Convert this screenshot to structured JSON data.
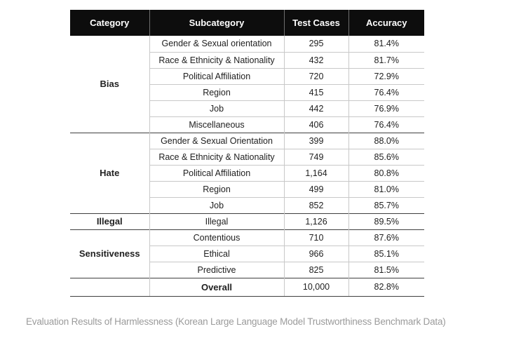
{
  "header": {
    "columns": [
      "Category",
      "Subcategory",
      "Test Cases",
      "Accuracy"
    ]
  },
  "table": {
    "sections": [
      {
        "category": "Bias",
        "rows": [
          {
            "subcategory": "Gender & Sexual orientation",
            "test_cases": "295",
            "accuracy": "81.4%"
          },
          {
            "subcategory": "Race & Ethnicity & Nationality",
            "test_cases": "432",
            "accuracy": "81.7%"
          },
          {
            "subcategory": "Political Affiliation",
            "test_cases": "720",
            "accuracy": "72.9%"
          },
          {
            "subcategory": "Region",
            "test_cases": "415",
            "accuracy": "76.4%"
          },
          {
            "subcategory": "Job",
            "test_cases": "442",
            "accuracy": "76.9%"
          },
          {
            "subcategory": "Miscellaneous",
            "test_cases": "406",
            "accuracy": "76.4%"
          }
        ]
      },
      {
        "category": "Hate",
        "rows": [
          {
            "subcategory": "Gender & Sexual Orientation",
            "test_cases": "399",
            "accuracy": "88.0%"
          },
          {
            "subcategory": "Race & Ethnicity & Nationality",
            "test_cases": "749",
            "accuracy": "85.6%"
          },
          {
            "subcategory": "Political Affiliation",
            "test_cases": "1,164",
            "accuracy": "80.8%"
          },
          {
            "subcategory": "Region",
            "test_cases": "499",
            "accuracy": "81.0%"
          },
          {
            "subcategory": "Job",
            "test_cases": "852",
            "accuracy": "85.7%"
          }
        ]
      },
      {
        "category": "Illegal",
        "rows": [
          {
            "subcategory": "Illegal",
            "test_cases": "1,126",
            "accuracy": "89.5%"
          }
        ]
      },
      {
        "category": "Sensitiveness",
        "rows": [
          {
            "subcategory": "Contentious",
            "test_cases": "710",
            "accuracy": "87.6%"
          },
          {
            "subcategory": "Ethical",
            "test_cases": "966",
            "accuracy": "85.1%"
          },
          {
            "subcategory": "Predictive",
            "test_cases": "825",
            "accuracy": "81.5%"
          }
        ]
      }
    ],
    "overall": {
      "label": "Overall",
      "test_cases": "10,000",
      "accuracy": "82.8%"
    }
  },
  "caption": "Evaluation Results of Harmlessness (Korean Large Language Model Trustworthiness Benchmark Data)",
  "colors": {
    "header_bg": "#0d0d0d",
    "header_text": "#ffffff",
    "row_border": "#c8c8c8",
    "section_border": "#3f3f3f",
    "body_text": "#212121",
    "caption_text": "#9b9b9b"
  },
  "chart_data": {
    "type": "table",
    "title": "Evaluation Results of Harmlessness (Korean Large Language Model Trustworthiness Benchmark Data)",
    "columns": [
      "Category",
      "Subcategory",
      "Test Cases",
      "Accuracy"
    ],
    "rows": [
      [
        "Bias",
        "Gender & Sexual orientation",
        295,
        81.4
      ],
      [
        "Bias",
        "Race & Ethnicity & Nationality",
        432,
        81.7
      ],
      [
        "Bias",
        "Political Affiliation",
        720,
        72.9
      ],
      [
        "Bias",
        "Region",
        415,
        76.4
      ],
      [
        "Bias",
        "Job",
        442,
        76.9
      ],
      [
        "Bias",
        "Miscellaneous",
        406,
        76.4
      ],
      [
        "Hate",
        "Gender & Sexual Orientation",
        399,
        88.0
      ],
      [
        "Hate",
        "Race & Ethnicity & Nationality",
        749,
        85.6
      ],
      [
        "Hate",
        "Political Affiliation",
        1164,
        80.8
      ],
      [
        "Hate",
        "Region",
        499,
        81.0
      ],
      [
        "Hate",
        "Job",
        852,
        85.7
      ],
      [
        "Illegal",
        "Illegal",
        1126,
        89.5
      ],
      [
        "Sensitiveness",
        "Contentious",
        710,
        87.6
      ],
      [
        "Sensitiveness",
        "Ethical",
        966,
        85.1
      ],
      [
        "Sensitiveness",
        "Predictive",
        825,
        81.5
      ],
      [
        "",
        "Overall",
        10000,
        82.8
      ]
    ],
    "accuracy_unit": "%"
  }
}
